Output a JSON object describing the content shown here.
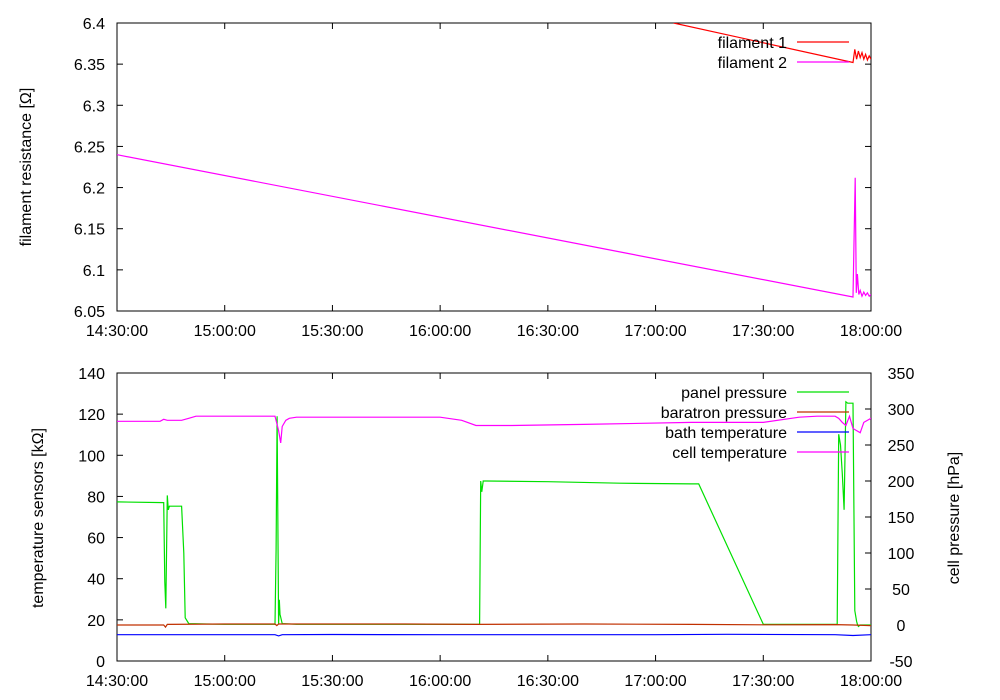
{
  "chart_data": [
    {
      "type": "line",
      "ylabel": "filament resistance [Ω]",
      "x_ticks": [
        "14:30:00",
        "15:00:00",
        "15:30:00",
        "16:00:00",
        "16:30:00",
        "17:00:00",
        "17:30:00",
        "18:00:00"
      ],
      "xlim_minutes": [
        0,
        210
      ],
      "ylim": [
        6.05,
        6.4
      ],
      "y_ticks": [
        "6.05",
        "6.1",
        "6.15",
        "6.2",
        "6.25",
        "6.3",
        "6.35",
        "6.4"
      ],
      "legend": "top-right",
      "series": [
        {
          "name": "filament 1",
          "color": "#ff0000",
          "x": [
            155,
            205,
            205.5,
            206,
            206.5,
            207,
            207.5,
            208,
            208.5,
            209,
            209.5,
            210
          ],
          "y": [
            6.4,
            6.352,
            6.368,
            6.356,
            6.366,
            6.358,
            6.364,
            6.356,
            6.362,
            6.355,
            6.36,
            6.356
          ]
        },
        {
          "name": "filament 2",
          "color": "#ff00ff",
          "x": [
            0,
            205,
            205.6,
            205.9,
            206.2,
            206.6,
            207,
            207.5,
            208,
            208.5,
            209,
            209.5,
            210
          ],
          "y": [
            6.24,
            6.067,
            6.212,
            6.072,
            6.095,
            6.07,
            6.075,
            6.068,
            6.073,
            6.069,
            6.072,
            6.068,
            6.07
          ]
        }
      ]
    },
    {
      "type": "line",
      "ylabel": "temperature sensors [kΩ]",
      "y2label": "cell pressure [hPa]",
      "x_ticks": [
        "14:30:00",
        "15:00:00",
        "15:30:00",
        "16:00:00",
        "16:30:00",
        "17:00:00",
        "17:30:00",
        "18:00:00"
      ],
      "xlim_minutes": [
        0,
        210
      ],
      "ylim": [
        0,
        140
      ],
      "y_ticks": [
        "0",
        "20",
        "40",
        "60",
        "80",
        "100",
        "120",
        "140"
      ],
      "y2lim": [
        -50,
        350
      ],
      "y2_ticks": [
        "-50",
        "0",
        "50",
        "100",
        "150",
        "200",
        "250",
        "300",
        "350"
      ],
      "legend": "top-right",
      "series": [
        {
          "name": "panel pressure",
          "axis": "y2",
          "color": "#00e000",
          "x": [
            0,
            13,
            13.3,
            13.6,
            14,
            14.3,
            14.6,
            15,
            16,
            18,
            18.6,
            19,
            20,
            30,
            40,
            44,
            44.3,
            44.6,
            45,
            45.2,
            45.4,
            46,
            50,
            70,
            90,
            100,
            101,
            101.3,
            101.6,
            102,
            102.4,
            103,
            120,
            140,
            160,
            162,
            180,
            200,
            200.3,
            200.6,
            201,
            201.5,
            202,
            202.5,
            203,
            203.5,
            204,
            205,
            205.5,
            206,
            206.2,
            206.5,
            207,
            210
          ],
          "y": [
            171,
            170,
            60,
            23,
            180,
            160,
            165,
            165,
            165,
            165,
            100,
            10,
            2,
            1,
            1,
            1,
            105,
            290,
            1,
            35,
            15,
            2,
            1,
            1,
            1,
            1,
            1,
            200,
            185,
            200,
            200,
            200,
            199,
            197,
            196,
            196,
            1,
            1,
            1,
            1,
            265,
            250,
            210,
            160,
            310,
            308,
            308,
            308,
            20,
            5,
            1,
            -2,
            0,
            0
          ],
          "y_units": "hPa"
        },
        {
          "name": "baratron pressure",
          "axis": "y1",
          "color": "#c03000",
          "x": [
            0,
            13,
            13.5,
            14,
            30,
            44,
            44.5,
            45,
            80,
            100,
            130,
            160,
            180,
            200,
            205,
            210
          ],
          "y": [
            17.5,
            17.5,
            16.5,
            17.8,
            18,
            18,
            17.2,
            18,
            18,
            17.8,
            18,
            17.8,
            17.6,
            17.7,
            17.5,
            17.2
          ]
        },
        {
          "name": "bath temperature",
          "axis": "y1",
          "color": "#0000ff",
          "x": [
            0,
            44,
            45,
            46,
            60,
            90,
            120,
            150,
            170,
            200,
            205,
            210
          ],
          "y": [
            12.8,
            12.8,
            12.2,
            12.8,
            12.9,
            12.8,
            12.8,
            12.8,
            13,
            12.8,
            12.4,
            12.8
          ]
        },
        {
          "name": "cell temperature",
          "axis": "y1",
          "color": "#ff00ff",
          "x": [
            0,
            12,
            13,
            14,
            18,
            20,
            22,
            30,
            44,
            45,
            45.6,
            46,
            47,
            48,
            50,
            55,
            70,
            90,
            96,
            100,
            110,
            130,
            160,
            180,
            190,
            195,
            200,
            201,
            202,
            203,
            204,
            205,
            206,
            207,
            208,
            210
          ],
          "y": [
            116.5,
            116.5,
            117.5,
            117,
            117,
            118,
            119,
            119,
            119,
            112,
            106,
            114,
            117,
            118,
            118.5,
            118.5,
            118.5,
            118.5,
            117,
            114.5,
            114.5,
            115,
            116,
            116,
            118.5,
            119,
            119,
            118,
            116,
            114.5,
            119,
            113,
            112,
            111,
            116,
            118
          ]
        }
      ]
    }
  ]
}
